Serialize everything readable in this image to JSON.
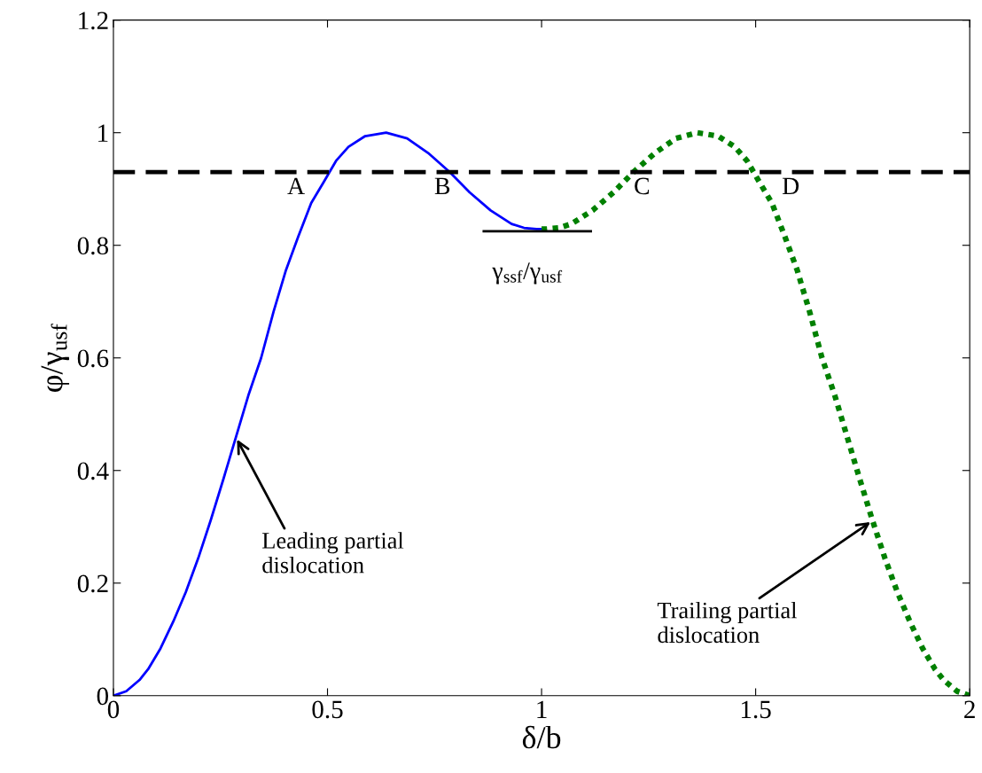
{
  "chart_data": {
    "type": "line",
    "xlabel": "δ/b",
    "ylabel": "φ/γ$_{usf}$",
    "xlim": [
      0,
      2
    ],
    "ylim": [
      0,
      1.2
    ],
    "xticks": [
      0,
      0.5,
      1,
      1.5,
      2
    ],
    "yticks": [
      0,
      0.2,
      0.4,
      0.6,
      0.8,
      1,
      1.2
    ],
    "grid": false,
    "marker": "none",
    "series": [
      {
        "color": "#0000ff",
        "line_style": "solid",
        "x": [
          0,
          0.03,
          0.061,
          0.081,
          0.11,
          0.14,
          0.169,
          0.198,
          0.227,
          0.257,
          0.286,
          0.315,
          0.345,
          0.374,
          0.403,
          0.432,
          0.462,
          0.491,
          0.52,
          0.549,
          0.588,
          0.637,
          0.686,
          0.735,
          0.784,
          0.832,
          0.881,
          0.93,
          0.959,
          0.988,
          1.0
        ],
        "values": [
          0,
          0.008,
          0.028,
          0.047,
          0.084,
          0.132,
          0.184,
          0.244,
          0.311,
          0.385,
          0.459,
          0.533,
          0.6,
          0.682,
          0.756,
          0.816,
          0.875,
          0.912,
          0.95,
          0.975,
          0.994,
          1.0,
          0.99,
          0.964,
          0.931,
          0.894,
          0.862,
          0.838,
          0.831,
          0.829,
          0.829
        ]
      },
      {
        "color": "#008000",
        "line_style": "dotted",
        "x": [
          1.0,
          1.012,
          1.041,
          1.07,
          1.119,
          1.168,
          1.216,
          1.265,
          1.314,
          1.363,
          1.412,
          1.451,
          1.48,
          1.509,
          1.538,
          1.568,
          1.597,
          1.626,
          1.655,
          1.685,
          1.714,
          1.743,
          1.773,
          1.802,
          1.831,
          1.86,
          1.89,
          1.919,
          1.939,
          1.97,
          2.0
        ],
        "values": [
          0.829,
          0.829,
          0.831,
          0.838,
          0.862,
          0.894,
          0.931,
          0.964,
          0.99,
          1.0,
          0.994,
          0.975,
          0.95,
          0.912,
          0.875,
          0.816,
          0.756,
          0.682,
          0.6,
          0.533,
          0.459,
          0.385,
          0.311,
          0.244,
          0.184,
          0.132,
          0.084,
          0.047,
          0.028,
          0.008,
          0
        ]
      },
      {
        "color": "#000000",
        "line_style": "solid",
        "x": [
          0.865,
          1.115
        ],
        "values": [
          0.825,
          0.825
        ]
      }
    ],
    "ref_lines": [
      {
        "axis": "y",
        "value": 0.93,
        "color": "#000000",
        "line_style": "dashed"
      }
    ],
    "annotations": [
      {
        "text": "A",
        "x": 0.51,
        "y": 0.93
      },
      {
        "text": "B",
        "x": 0.78,
        "y": 0.93
      },
      {
        "text": "C",
        "x": 1.22,
        "y": 0.93
      },
      {
        "text": "D",
        "x": 1.49,
        "y": 0.93
      },
      {
        "text": "γ$_{ssf}$/γ$_{usf}$",
        "x": 0.99,
        "y": 0.825
      },
      {
        "text": "Leading partial\ndislocation",
        "x": 0.286,
        "y": 0.459
      },
      {
        "text": "Trailing partial\ndislocation",
        "x": 1.773,
        "y": 0.311
      }
    ]
  }
}
